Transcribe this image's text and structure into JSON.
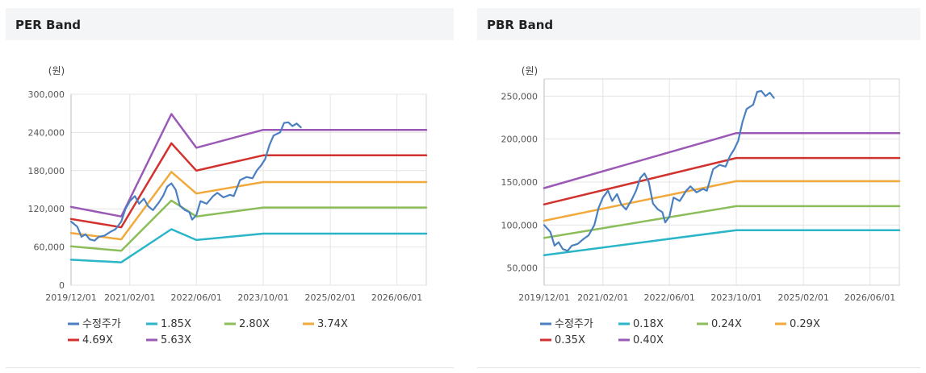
{
  "panels": {
    "per": {
      "title": "PER Band"
    },
    "pbr": {
      "title": "PBR Band"
    }
  },
  "chart_data": [
    {
      "type": "line",
      "title": "PER Band",
      "ylabel": "(원)",
      "ylim": [
        0,
        300000
      ],
      "yticks": [
        0,
        60000,
        120000,
        180000,
        240000,
        300000
      ],
      "ytick_labels": [
        "0",
        "60,000",
        "120,000",
        "180,000",
        "240,000",
        "300,000"
      ],
      "xlim": [
        "2019-12-01",
        "2027-01-01"
      ],
      "xticks": [
        "2019-12-01",
        "2021-02-01",
        "2022-06-01",
        "2023-10-01",
        "2025-02-01",
        "2026-06-01"
      ],
      "xtick_labels": [
        "2019/12/01",
        "2021/02/01",
        "2022/06/01",
        "2023/10/01",
        "2025/02/01",
        "2026/06/01"
      ],
      "grid": true,
      "legend_position": "bottom",
      "series": [
        {
          "name": "수정주가",
          "color": "#4a7fc1",
          "points": [
            [
              "2019-12-01",
              100000
            ],
            [
              "2020-01-15",
              92000
            ],
            [
              "2020-02-15",
              76000
            ],
            [
              "2020-03-15",
              80000
            ],
            [
              "2020-04-15",
              72000
            ],
            [
              "2020-05-20",
              70000
            ],
            [
              "2020-06-20",
              76000
            ],
            [
              "2020-08-01",
              78000
            ],
            [
              "2020-09-15",
              84000
            ],
            [
              "2020-10-20",
              88000
            ],
            [
              "2020-12-01",
              100000
            ],
            [
              "2021-01-01",
              120000
            ],
            [
              "2021-02-01",
              132000
            ],
            [
              "2021-03-10",
              140000
            ],
            [
              "2021-04-10",
              128000
            ],
            [
              "2021-05-15",
              136000
            ],
            [
              "2021-06-15",
              124000
            ],
            [
              "2021-07-20",
              118000
            ],
            [
              "2021-09-01",
              130000
            ],
            [
              "2021-10-01",
              140000
            ],
            [
              "2021-11-01",
              155000
            ],
            [
              "2021-12-01",
              160000
            ],
            [
              "2022-01-01",
              150000
            ],
            [
              "2022-02-01",
              125000
            ],
            [
              "2022-03-10",
              118000
            ],
            [
              "2022-04-10",
              115000
            ],
            [
              "2022-05-01",
              103000
            ],
            [
              "2022-06-01",
              110000
            ],
            [
              "2022-07-01",
              132000
            ],
            [
              "2022-08-15",
              128000
            ],
            [
              "2022-10-01",
              140000
            ],
            [
              "2022-11-01",
              145000
            ],
            [
              "2022-12-15",
              138000
            ],
            [
              "2023-02-01",
              142000
            ],
            [
              "2023-03-01",
              140000
            ],
            [
              "2023-04-15",
              165000
            ],
            [
              "2023-06-01",
              170000
            ],
            [
              "2023-07-15",
              168000
            ],
            [
              "2023-08-15",
              180000
            ],
            [
              "2023-09-15",
              188000
            ],
            [
              "2023-10-15",
              198000
            ],
            [
              "2023-11-15",
              220000
            ],
            [
              "2023-12-15",
              235000
            ],
            [
              "2024-02-01",
              240000
            ],
            [
              "2024-03-01",
              255000
            ],
            [
              "2024-04-01",
              256000
            ],
            [
              "2024-05-01",
              250000
            ],
            [
              "2024-06-01",
              254000
            ],
            [
              "2024-07-01",
              248000
            ]
          ]
        },
        {
          "name": "1.85X",
          "color": "#2ab5c8",
          "points": [
            [
              "2019-12-01",
              40000
            ],
            [
              "2020-12-01",
              36000
            ],
            [
              "2021-12-01",
              88000
            ],
            [
              "2022-06-01",
              71000
            ],
            [
              "2023-10-01",
              81000
            ],
            [
              "2027-01-01",
              81000
            ]
          ]
        },
        {
          "name": "2.80X",
          "color": "#8bbd5a",
          "points": [
            [
              "2019-12-01",
              61000
            ],
            [
              "2020-12-01",
              54000
            ],
            [
              "2021-12-01",
              133000
            ],
            [
              "2022-06-01",
              108000
            ],
            [
              "2023-10-01",
              122000
            ],
            [
              "2027-01-01",
              122000
            ]
          ]
        },
        {
          "name": "3.74X",
          "color": "#f2a93b",
          "points": [
            [
              "2019-12-01",
              82000
            ],
            [
              "2020-12-01",
              72000
            ],
            [
              "2021-12-01",
              178000
            ],
            [
              "2022-06-01",
              144000
            ],
            [
              "2023-10-01",
              162000
            ],
            [
              "2027-01-01",
              162000
            ]
          ]
        },
        {
          "name": "4.69X",
          "color": "#d2322d",
          "points": [
            [
              "2019-12-01",
              104000
            ],
            [
              "2020-12-01",
              91000
            ],
            [
              "2021-12-01",
              223000
            ],
            [
              "2022-06-01",
              180000
            ],
            [
              "2023-10-01",
              204000
            ],
            [
              "2027-01-01",
              204000
            ]
          ]
        },
        {
          "name": "5.63X",
          "color": "#9b59b6",
          "points": [
            [
              "2019-12-01",
              123000
            ],
            [
              "2020-12-01",
              108000
            ],
            [
              "2021-12-01",
              269000
            ],
            [
              "2022-06-01",
              216000
            ],
            [
              "2023-10-01",
              244000
            ],
            [
              "2027-01-01",
              244000
            ]
          ]
        }
      ]
    },
    {
      "type": "line",
      "title": "PBR Band",
      "ylabel": "(원)",
      "ylim": [
        30000,
        270000
      ],
      "yticks": [
        50000,
        100000,
        150000,
        200000,
        250000
      ],
      "ytick_labels": [
        "50,000",
        "100,000",
        "150,000",
        "200,000",
        "250,000"
      ],
      "xlim": [
        "2019-12-01",
        "2027-01-01"
      ],
      "xticks": [
        "2019-12-01",
        "2021-02-01",
        "2022-06-01",
        "2023-10-01",
        "2025-02-01",
        "2026-06-01"
      ],
      "xtick_labels": [
        "2019/12/01",
        "2021/02/01",
        "2022/06/01",
        "2023/10/01",
        "2025/02/01",
        "2026/06/01"
      ],
      "grid": true,
      "legend_position": "bottom",
      "series": [
        {
          "name": "수정주가",
          "color": "#4a7fc1",
          "points": [
            [
              "2019-12-01",
              100000
            ],
            [
              "2020-01-15",
              92000
            ],
            [
              "2020-02-15",
              76000
            ],
            [
              "2020-03-15",
              80000
            ],
            [
              "2020-04-15",
              72000
            ],
            [
              "2020-05-20",
              70000
            ],
            [
              "2020-06-20",
              76000
            ],
            [
              "2020-08-01",
              78000
            ],
            [
              "2020-09-15",
              84000
            ],
            [
              "2020-10-20",
              88000
            ],
            [
              "2020-12-01",
              100000
            ],
            [
              "2021-01-01",
              120000
            ],
            [
              "2021-02-01",
              132000
            ],
            [
              "2021-03-10",
              140000
            ],
            [
              "2021-04-10",
              128000
            ],
            [
              "2021-05-15",
              136000
            ],
            [
              "2021-06-15",
              124000
            ],
            [
              "2021-07-20",
              118000
            ],
            [
              "2021-09-01",
              130000
            ],
            [
              "2021-10-01",
              140000
            ],
            [
              "2021-11-01",
              155000
            ],
            [
              "2021-12-01",
              160000
            ],
            [
              "2022-01-01",
              150000
            ],
            [
              "2022-02-01",
              125000
            ],
            [
              "2022-03-10",
              118000
            ],
            [
              "2022-04-10",
              115000
            ],
            [
              "2022-05-01",
              103000
            ],
            [
              "2022-06-01",
              110000
            ],
            [
              "2022-07-01",
              132000
            ],
            [
              "2022-08-15",
              128000
            ],
            [
              "2022-10-01",
              140000
            ],
            [
              "2022-11-01",
              145000
            ],
            [
              "2022-12-15",
              138000
            ],
            [
              "2023-02-01",
              142000
            ],
            [
              "2023-03-01",
              140000
            ],
            [
              "2023-04-15",
              165000
            ],
            [
              "2023-06-01",
              170000
            ],
            [
              "2023-07-15",
              168000
            ],
            [
              "2023-08-15",
              180000
            ],
            [
              "2023-09-15",
              188000
            ],
            [
              "2023-10-15",
              198000
            ],
            [
              "2023-11-15",
              220000
            ],
            [
              "2023-12-15",
              235000
            ],
            [
              "2024-02-01",
              240000
            ],
            [
              "2024-03-01",
              255000
            ],
            [
              "2024-04-01",
              256000
            ],
            [
              "2024-05-01",
              250000
            ],
            [
              "2024-06-01",
              254000
            ],
            [
              "2024-07-01",
              248000
            ]
          ]
        },
        {
          "name": "0.18X",
          "color": "#2ab5c8",
          "points": [
            [
              "2019-12-01",
              65000
            ],
            [
              "2023-10-01",
              94000
            ],
            [
              "2027-01-01",
              94000
            ]
          ]
        },
        {
          "name": "0.24X",
          "color": "#8bbd5a",
          "points": [
            [
              "2019-12-01",
              85000
            ],
            [
              "2023-10-01",
              122000
            ],
            [
              "2027-01-01",
              122000
            ]
          ]
        },
        {
          "name": "0.29X",
          "color": "#f2a93b",
          "points": [
            [
              "2019-12-01",
              105000
            ],
            [
              "2023-10-01",
              151000
            ],
            [
              "2027-01-01",
              151000
            ]
          ]
        },
        {
          "name": "0.35X",
          "color": "#d2322d",
          "points": [
            [
              "2019-12-01",
              124000
            ],
            [
              "2023-10-01",
              178000
            ],
            [
              "2027-01-01",
              178000
            ]
          ]
        },
        {
          "name": "0.40X",
          "color": "#9b59b6",
          "points": [
            [
              "2019-12-01",
              143000
            ],
            [
              "2023-10-01",
              207000
            ],
            [
              "2027-01-01",
              207000
            ]
          ]
        }
      ]
    }
  ]
}
